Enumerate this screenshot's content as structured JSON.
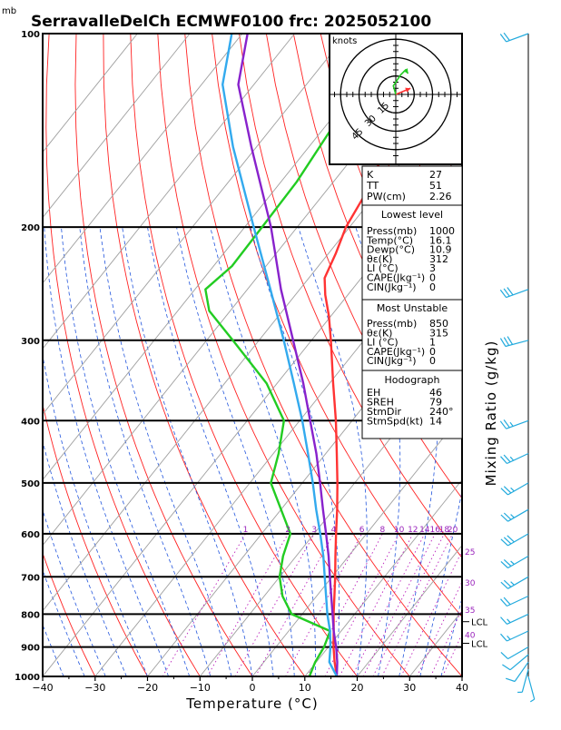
{
  "header": {
    "unit_label": "mb",
    "title": "SerravalleDelCh ECMWF0100 frc: 2025052100"
  },
  "chart_data": {
    "type": "line",
    "subtype": "skew-t log-p sounding",
    "x_axis": {
      "label": "Temperature (°C)",
      "range": [
        -40,
        40
      ],
      "ticks": [
        -40,
        -30,
        -20,
        -10,
        0,
        10,
        20,
        30,
        40
      ],
      "tick_labels": [
        "−40",
        "−30",
        "−20",
        "−10",
        "0",
        "10",
        "20",
        "30",
        "40"
      ]
    },
    "y_axis": {
      "unit_label": "mb",
      "scale": "log",
      "range": [
        1000,
        100
      ],
      "ticks": [
        1000,
        900,
        800,
        700,
        600,
        500,
        400,
        300,
        200,
        100
      ],
      "tick_labels": [
        "1000",
        "900",
        "800",
        "700",
        "600",
        "500",
        "400",
        "300",
        "200",
        "100"
      ]
    },
    "mixing_ratio": {
      "label": "Mixing Ratio (g/kg)",
      "values": [
        1,
        2,
        3,
        4,
        6,
        8,
        10,
        12,
        14,
        16,
        18,
        20,
        25,
        30,
        35,
        40
      ],
      "labels": [
        "1",
        "2",
        "3",
        "4",
        "6",
        "8",
        "10",
        "12",
        "14",
        "16",
        "18",
        "20",
        "25",
        "30",
        "35",
        "40"
      ]
    },
    "levels": {
      "lcl_label": "LCL",
      "lcl_pressures": [
        822,
        888
      ]
    },
    "series": [
      {
        "role": "temperature",
        "color": "#ff3333",
        "points": [
          [
            1000,
            16.1
          ],
          [
            950,
            13.5
          ],
          [
            900,
            11.0
          ],
          [
            850,
            8.6
          ],
          [
            800,
            6.0
          ],
          [
            750,
            3.4
          ],
          [
            700,
            0.6
          ],
          [
            650,
            -2.5
          ],
          [
            600,
            -5.8
          ],
          [
            550,
            -9.3
          ],
          [
            500,
            -13.3
          ],
          [
            450,
            -17.9
          ],
          [
            400,
            -23.1
          ],
          [
            350,
            -29.3
          ],
          [
            300,
            -36.3
          ],
          [
            275,
            -40.4
          ],
          [
            255,
            -44.3
          ],
          [
            240,
            -47.0
          ],
          [
            220,
            -48.6
          ],
          [
            200,
            -50.7
          ],
          [
            180,
            -51.9
          ],
          [
            160,
            -54.0
          ],
          [
            140,
            -56.2
          ],
          [
            120,
            -58.9
          ],
          [
            100,
            -60.8
          ]
        ]
      },
      {
        "role": "dewpoint",
        "color": "#22cc22",
        "points": [
          [
            1000,
            10.9
          ],
          [
            950,
            9.8
          ],
          [
            900,
            9.2
          ],
          [
            850,
            7.9
          ],
          [
            800,
            -2.0
          ],
          [
            750,
            -6.5
          ],
          [
            700,
            -10.0
          ],
          [
            650,
            -12.5
          ],
          [
            600,
            -14.5
          ],
          [
            550,
            -20.0
          ],
          [
            500,
            -26.0
          ],
          [
            450,
            -29.0
          ],
          [
            400,
            -33.0
          ],
          [
            350,
            -42.0
          ],
          [
            300,
            -55.0
          ],
          [
            270,
            -64.0
          ],
          [
            250,
            -68.0
          ],
          [
            230,
            -66.5
          ],
          [
            200,
            -66.7
          ],
          [
            170,
            -67.0
          ],
          [
            140,
            -68.5
          ],
          [
            120,
            -70.5
          ],
          [
            100,
            -72.0
          ]
        ]
      },
      {
        "role": "parcel",
        "color": "#8822cc",
        "points": [
          [
            1000,
            16.1
          ],
          [
            950,
            14.0
          ],
          [
            900,
            11.5
          ],
          [
            850,
            8.6
          ],
          [
            800,
            5.8
          ],
          [
            750,
            2.8
          ],
          [
            700,
            -0.4
          ],
          [
            650,
            -3.8
          ],
          [
            600,
            -7.7
          ],
          [
            550,
            -12.0
          ],
          [
            500,
            -16.6
          ],
          [
            450,
            -21.8
          ],
          [
            400,
            -28.0
          ],
          [
            350,
            -35.0
          ],
          [
            300,
            -43.5
          ],
          [
            250,
            -53.6
          ],
          [
            200,
            -65.0
          ],
          [
            150,
            -81.0
          ],
          [
            120,
            -93.0
          ],
          [
            100,
            -99.0
          ]
        ]
      },
      {
        "role": "virtual-parcel",
        "color": "#33aaee",
        "points": [
          [
            1000,
            16.1
          ],
          [
            950,
            12.5
          ],
          [
            900,
            10.4
          ],
          [
            850,
            7.9
          ],
          [
            800,
            4.8
          ],
          [
            750,
            1.8
          ],
          [
            700,
            -1.4
          ],
          [
            650,
            -4.8
          ],
          [
            600,
            -8.8
          ],
          [
            550,
            -13.3
          ],
          [
            500,
            -18.0
          ],
          [
            450,
            -23.4
          ],
          [
            400,
            -29.5
          ],
          [
            350,
            -36.8
          ],
          [
            300,
            -45.3
          ],
          [
            250,
            -55.6
          ],
          [
            200,
            -68.3
          ],
          [
            150,
            -84.5
          ],
          [
            120,
            -96.0
          ],
          [
            100,
            -102.0
          ]
        ]
      }
    ],
    "wind_barbs": [
      {
        "pressure": 1000,
        "dir": 165,
        "kt": 5
      },
      {
        "pressure": 975,
        "dir": 195,
        "kt": 8
      },
      {
        "pressure": 950,
        "dir": 215,
        "kt": 10
      },
      {
        "pressure": 925,
        "dir": 230,
        "kt": 12
      },
      {
        "pressure": 900,
        "dir": 240,
        "kt": 14
      },
      {
        "pressure": 850,
        "dir": 245,
        "kt": 15
      },
      {
        "pressure": 800,
        "dir": 245,
        "kt": 18
      },
      {
        "pressure": 750,
        "dir": 245,
        "kt": 20
      },
      {
        "pressure": 700,
        "dir": 240,
        "kt": 25
      },
      {
        "pressure": 650,
        "dir": 240,
        "kt": 28
      },
      {
        "pressure": 600,
        "dir": 240,
        "kt": 30
      },
      {
        "pressure": 550,
        "dir": 240,
        "kt": 27
      },
      {
        "pressure": 500,
        "dir": 240,
        "kt": 25
      },
      {
        "pressure": 450,
        "dir": 245,
        "kt": 25
      },
      {
        "pressure": 400,
        "dir": 250,
        "kt": 28
      },
      {
        "pressure": 300,
        "dir": 255,
        "kt": 30
      },
      {
        "pressure": 250,
        "dir": 250,
        "kt": 32
      },
      {
        "pressure": 100,
        "dir": 250,
        "kt": 20
      }
    ],
    "hodograph": {
      "units_label": "knots",
      "rings": [
        15,
        30,
        45
      ],
      "ring_labels": [
        "15",
        "30",
        "45"
      ],
      "segments": [
        {
          "color": "#ff3333",
          "points": [
            [
              0,
              0
            ],
            [
              6,
              2.5
            ],
            [
              12,
              5
            ]
          ]
        },
        {
          "color": "#22cc22",
          "points": [
            [
              0,
              0
            ],
            [
              -2,
              7
            ],
            [
              4,
              16
            ],
            [
              8,
              20
            ],
            [
              10,
              17
            ]
          ]
        }
      ]
    }
  },
  "indices": {
    "k": {
      "label": "K",
      "value": "27"
    },
    "tt": {
      "label": "TT",
      "value": "51"
    },
    "pw": {
      "label": "PW(cm)",
      "value": "2.26"
    },
    "lowest": {
      "title": "Lowest level",
      "rows": [
        {
          "label": "Press(mb)",
          "value": "1000"
        },
        {
          "label": "Temp(°C)",
          "value": "16.1"
        },
        {
          "label": "Dewp(°C)",
          "value": "10.9"
        },
        {
          "label": "θε(K)",
          "value": "312"
        },
        {
          "label": "LI (°C)",
          "value": "3"
        },
        {
          "label": "CAPE(Jkg⁻¹)",
          "value": "0"
        },
        {
          "label": "CIN(Jkg⁻¹)",
          "value": "0"
        }
      ]
    },
    "most_unstable": {
      "title": "Most Unstable",
      "rows": [
        {
          "label": "Press(mb)",
          "value": "850"
        },
        {
          "label": "θε(K)",
          "value": "315"
        },
        {
          "label": "LI (°C)",
          "value": "1"
        },
        {
          "label": "CAPE(Jkg⁻¹)",
          "value": "0"
        },
        {
          "label": "CIN(Jkg⁻¹)",
          "value": "0"
        }
      ]
    },
    "hodograph_box": {
      "title": "Hodograph",
      "rows": [
        {
          "label": "EH",
          "value": "46"
        },
        {
          "label": "SREH",
          "value": "79"
        },
        {
          "label": "StmDir",
          "value": "240°"
        },
        {
          "label": "StmSpd(kt)",
          "value": "14"
        }
      ]
    }
  }
}
